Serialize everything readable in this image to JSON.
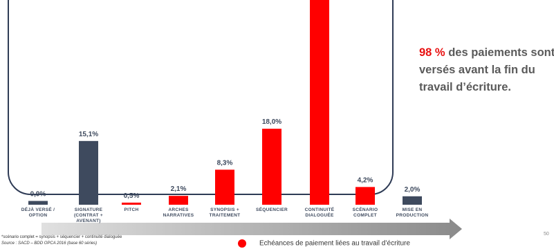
{
  "chart_data": {
    "type": "bar",
    "categories": [
      "DÉJÀ VERSÉ /\nOPTION",
      "SIGNATURE\n(CONTRAT +\nAVENANT)",
      "PITCH",
      "ARCHES\nNARRATIVES",
      "SYNOPSIS +\nTRAITEMENT",
      "SÉQUENCIER",
      "CONTINUITÉ\nDIALOGUÉE",
      "SCÉNARIO\nCOMPLET",
      "MISE EN\nPRODUCTION"
    ],
    "values": [
      0.9,
      15.1,
      0.5,
      2.1,
      8.3,
      18.0,
      48.9,
      4.2,
      2.0
    ],
    "value_labels": [
      "0,9%",
      "15,1%",
      "0,5%",
      "2,1%",
      "8,3%",
      "18,0%",
      null,
      "4,2%",
      "2,0%"
    ],
    "colors": [
      "#3e4a5e",
      "#3e4a5e",
      "#ff0000",
      "#ff0000",
      "#ff0000",
      "#ff0000",
      "#ff0000",
      "#ff0000",
      "#3e4a5e"
    ],
    "ylim": [
      0,
      48.5
    ],
    "legend": {
      "label": "Echéances de paiement liées au travail d’écriture",
      "color": "#ff0000"
    }
  },
  "callout": {
    "highlight": "98 %",
    "text": " des paiements sont versés avant la fin du travail d’écriture."
  },
  "footnotes": [
    "*scénario complet = synopsis + séquencier + continuité dialoguée",
    "Source : SACD – BDD OPCA 2016 (base 60 séries)"
  ],
  "page_number": "50"
}
